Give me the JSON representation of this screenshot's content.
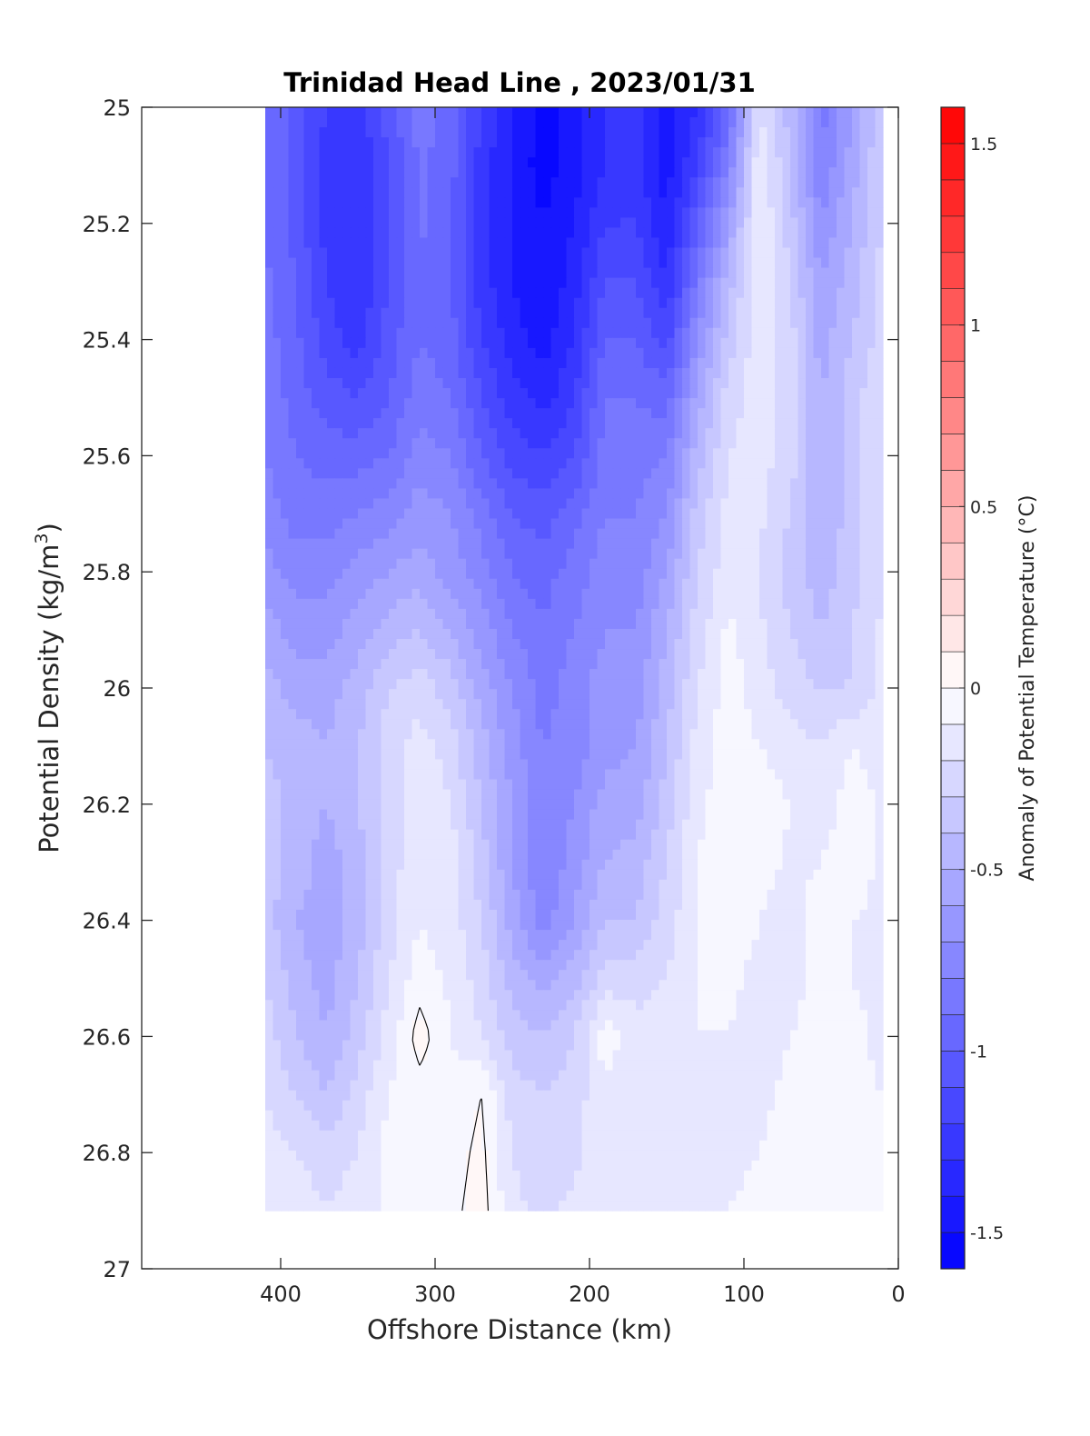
{
  "chart_data": {
    "type": "heatmap",
    "title": "Trinidad Head Line , 2023/01/31",
    "xlabel": "Offshore Distance (km)",
    "ylabel_main": "Potential Density (kg/m",
    "ylabel_sup": "3",
    "ylabel_close": ")",
    "xlim": [
      490,
      0
    ],
    "ylim": [
      25,
      27
    ],
    "x_reversed": true,
    "y_reversed": true,
    "xticks": [
      400,
      300,
      200,
      100,
      0
    ],
    "xtick_labels": [
      "400",
      "300",
      "200",
      "100",
      "0"
    ],
    "yticks": [
      25,
      25.2,
      25.4,
      25.6,
      25.8,
      26,
      26.2,
      26.4,
      26.6,
      26.8,
      27
    ],
    "ytick_labels": [
      "25",
      "25.2",
      "25.4",
      "25.6",
      "25.8",
      "26",
      "26.2",
      "26.4",
      "26.6",
      "26.8",
      "27"
    ],
    "colorbar": {
      "label": "Anomaly of Potential Temperature (°C)",
      "range": [
        -1.6,
        1.6
      ],
      "level_step": 0.1,
      "ticks": [
        -1.5,
        -1,
        -0.5,
        0,
        0.5,
        1,
        1.5
      ],
      "tick_labels": [
        "-1.5",
        "-1",
        "-0.5",
        "0",
        "0.5",
        "1",
        "1.5"
      ],
      "low_color": "#0000ff",
      "high_color": "#ff0000",
      "mid_color": "#ffffff"
    },
    "data_extent": {
      "x_range": [
        410,
        10
      ],
      "density_range": [
        25,
        26.9
      ]
    },
    "grid": false,
    "stations_km": [
      410,
      390,
      370,
      350,
      330,
      310,
      290,
      270,
      250,
      230,
      210,
      190,
      170,
      150,
      130,
      110,
      90,
      70,
      50,
      30,
      10
    ],
    "density_levels": [
      25.0,
      25.1,
      25.2,
      25.3,
      25.4,
      25.5,
      25.6,
      25.7,
      25.8,
      25.9,
      26.0,
      26.1,
      26.2,
      26.3,
      26.4,
      26.5,
      26.6,
      26.7,
      26.8,
      26.9
    ],
    "anomaly": [
      [
        -0.9,
        -1.05,
        -1.2,
        -1.25,
        -1.05,
        -0.85,
        -0.95,
        -1.2,
        -1.4,
        -1.55,
        -1.45,
        -1.3,
        -1.25,
        -1.45,
        -1.3,
        -0.95,
        -0.2,
        -0.45,
        -0.85,
        -0.6,
        -0.3
      ],
      [
        -0.9,
        -1.05,
        -1.25,
        -1.3,
        -1.1,
        -0.88,
        -0.95,
        -1.25,
        -1.42,
        -1.55,
        -1.45,
        -1.3,
        -1.25,
        -1.45,
        -1.2,
        -0.8,
        -0.1,
        -0.4,
        -0.8,
        -0.55,
        -0.3
      ],
      [
        -0.9,
        -1.05,
        -1.25,
        -1.3,
        -1.1,
        -0.88,
        -1.0,
        -1.25,
        -1.42,
        -1.5,
        -1.4,
        -1.2,
        -1.2,
        -1.4,
        -1.0,
        -0.6,
        -0.1,
        -0.35,
        -0.7,
        -0.5,
        -0.3
      ],
      [
        -0.88,
        -1.0,
        -1.2,
        -1.3,
        -1.1,
        -0.9,
        -1.0,
        -1.25,
        -1.4,
        -1.5,
        -1.35,
        -1.1,
        -1.1,
        -1.3,
        -0.85,
        -0.45,
        -0.1,
        -0.3,
        -0.6,
        -0.45,
        -0.25
      ],
      [
        -0.85,
        -0.98,
        -1.15,
        -1.25,
        -1.05,
        -0.9,
        -0.95,
        -1.2,
        -1.35,
        -1.45,
        -1.3,
        -1.0,
        -1.0,
        -1.15,
        -0.7,
        -0.35,
        -0.12,
        -0.25,
        -0.55,
        -0.4,
        -0.25
      ],
      [
        -0.82,
        -0.95,
        -1.05,
        -1.1,
        -1.0,
        -0.85,
        -0.9,
        -1.1,
        -1.25,
        -1.35,
        -1.2,
        -0.9,
        -0.9,
        -0.95,
        -0.55,
        -0.25,
        -0.14,
        -0.25,
        -0.5,
        -0.35,
        -0.2
      ],
      [
        -0.8,
        -0.9,
        -0.95,
        -0.95,
        -0.9,
        -0.75,
        -0.8,
        -1.0,
        -1.15,
        -1.2,
        -1.1,
        -0.85,
        -0.85,
        -0.8,
        -0.45,
        -0.2,
        -0.16,
        -0.25,
        -0.5,
        -0.35,
        -0.2
      ],
      [
        -0.75,
        -0.85,
        -0.85,
        -0.8,
        -0.75,
        -0.65,
        -0.7,
        -0.85,
        -1.0,
        -1.05,
        -0.95,
        -0.8,
        -0.8,
        -0.7,
        -0.35,
        -0.16,
        -0.18,
        -0.3,
        -0.5,
        -0.35,
        -0.2
      ],
      [
        -0.65,
        -0.75,
        -0.75,
        -0.65,
        -0.6,
        -0.55,
        -0.65,
        -0.75,
        -0.9,
        -0.95,
        -0.85,
        -0.75,
        -0.75,
        -0.6,
        -0.3,
        -0.14,
        -0.2,
        -0.35,
        -0.45,
        -0.35,
        -0.2
      ],
      [
        -0.55,
        -0.65,
        -0.65,
        -0.55,
        -0.45,
        -0.4,
        -0.5,
        -0.65,
        -0.8,
        -0.88,
        -0.8,
        -0.7,
        -0.7,
        -0.5,
        -0.25,
        -0.08,
        -0.18,
        -0.3,
        -0.4,
        -0.3,
        -0.18
      ],
      [
        -0.45,
        -0.55,
        -0.55,
        -0.45,
        -0.3,
        -0.25,
        -0.35,
        -0.55,
        -0.7,
        -0.85,
        -0.75,
        -0.65,
        -0.65,
        -0.45,
        -0.2,
        -0.05,
        -0.15,
        -0.25,
        -0.3,
        -0.3,
        -0.16
      ],
      [
        -0.4,
        -0.45,
        -0.5,
        -0.4,
        -0.25,
        -0.15,
        -0.25,
        -0.45,
        -0.65,
        -0.8,
        -0.75,
        -0.65,
        -0.6,
        -0.4,
        -0.15,
        -0.05,
        -0.1,
        -0.15,
        -0.2,
        -0.1,
        -0.14
      ],
      [
        -0.35,
        -0.45,
        -0.5,
        -0.4,
        -0.25,
        -0.12,
        -0.2,
        -0.4,
        -0.6,
        -0.8,
        -0.7,
        -0.55,
        -0.55,
        -0.35,
        -0.12,
        -0.05,
        -0.05,
        -0.1,
        -0.15,
        -0.05,
        -0.12
      ],
      [
        -0.35,
        -0.45,
        -0.55,
        -0.45,
        -0.25,
        -0.12,
        -0.15,
        -0.35,
        -0.6,
        -0.8,
        -0.65,
        -0.5,
        -0.45,
        -0.3,
        -0.1,
        -0.05,
        -0.05,
        -0.12,
        -0.1,
        -0.05,
        -0.12
      ],
      [
        -0.35,
        -0.5,
        -0.55,
        -0.45,
        -0.25,
        -0.1,
        -0.15,
        -0.3,
        -0.55,
        -0.75,
        -0.6,
        -0.4,
        -0.4,
        -0.25,
        -0.1,
        -0.06,
        -0.1,
        -0.15,
        -0.05,
        -0.1,
        -0.12
      ],
      [
        -0.3,
        -0.45,
        -0.55,
        -0.4,
        -0.2,
        -0.05,
        -0.12,
        -0.25,
        -0.45,
        -0.55,
        -0.45,
        -0.25,
        -0.25,
        -0.2,
        -0.1,
        -0.08,
        -0.12,
        -0.14,
        -0.05,
        -0.1,
        -0.12
      ],
      [
        -0.25,
        -0.4,
        -0.5,
        -0.35,
        -0.15,
        0.05,
        -0.1,
        -0.2,
        -0.35,
        -0.4,
        -0.3,
        -0.05,
        -0.15,
        -0.15,
        -0.1,
        -0.1,
        -0.15,
        -0.1,
        -0.08,
        -0.08,
        -0.12
      ],
      [
        -0.2,
        -0.3,
        -0.4,
        -0.25,
        -0.1,
        -0.05,
        -0.08,
        0.0,
        -0.25,
        -0.3,
        -0.25,
        -0.12,
        -0.15,
        -0.2,
        -0.15,
        -0.15,
        -0.12,
        -0.08,
        -0.06,
        -0.08,
        -0.1
      ],
      [
        -0.15,
        -0.2,
        -0.25,
        -0.2,
        -0.05,
        -0.08,
        -0.05,
        0.03,
        -0.2,
        -0.25,
        -0.22,
        -0.15,
        -0.2,
        -0.2,
        -0.15,
        -0.12,
        -0.1,
        -0.05,
        -0.05,
        -0.05,
        -0.1
      ],
      [
        -0.12,
        -0.15,
        -0.2,
        -0.15,
        -0.08,
        -0.08,
        -0.03,
        0.05,
        -0.18,
        -0.22,
        -0.18,
        -0.15,
        -0.2,
        -0.18,
        -0.14,
        -0.1,
        -0.08,
        -0.05,
        -0.05,
        -0.05,
        -0.08
      ]
    ]
  }
}
